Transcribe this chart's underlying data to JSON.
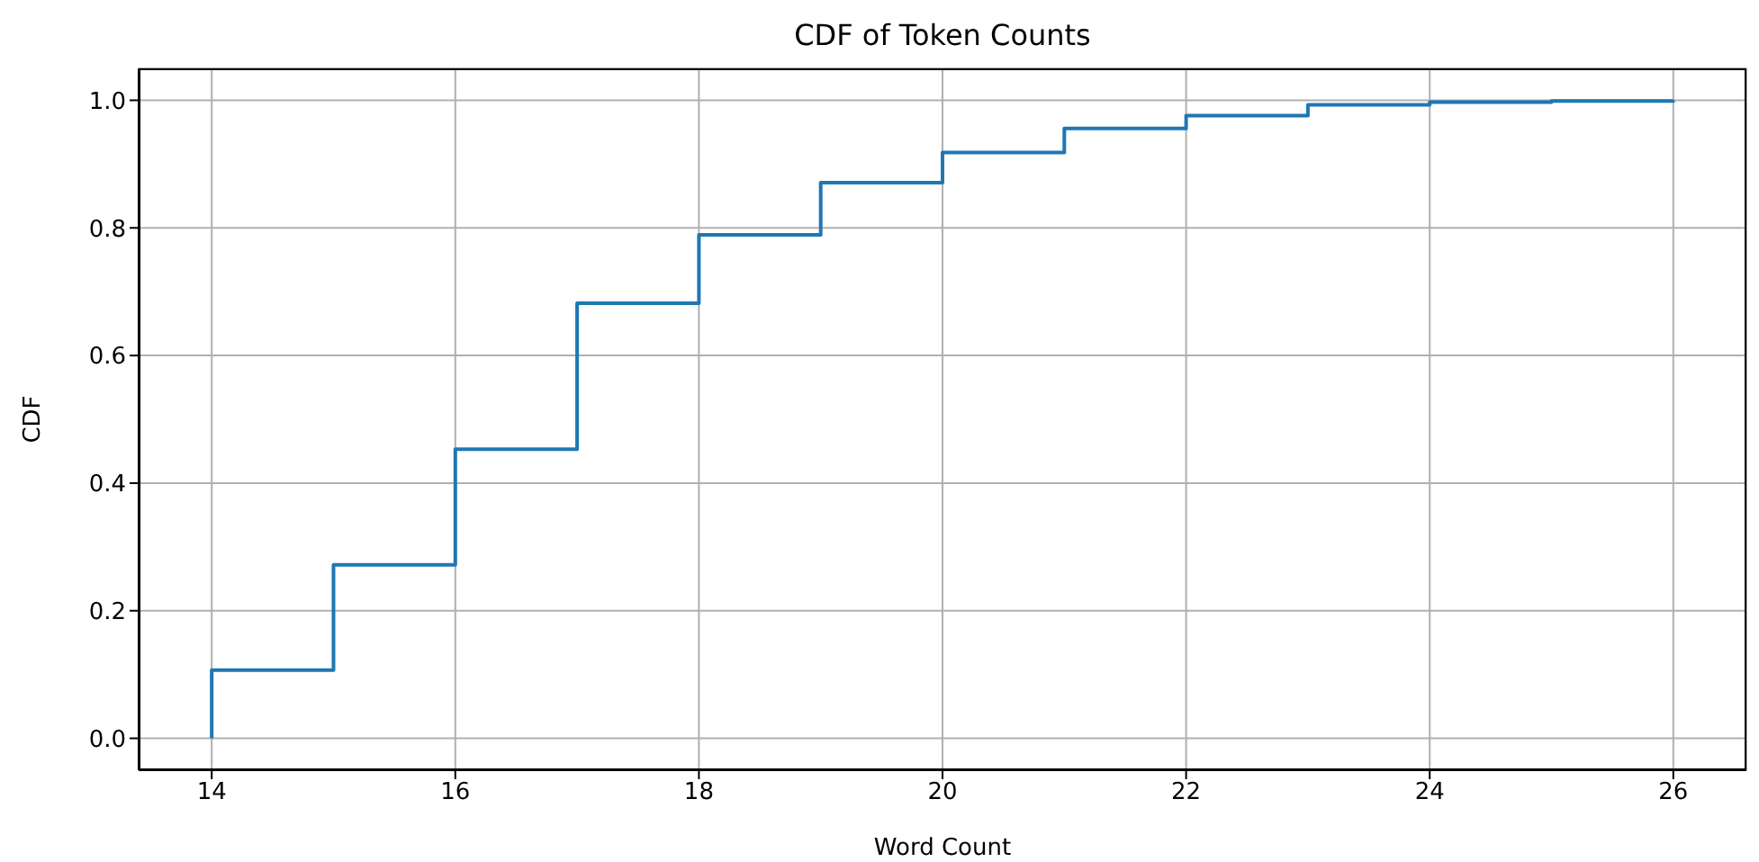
{
  "chart_data": {
    "type": "step",
    "title": "CDF of Token Counts",
    "xlabel": "Word Count",
    "ylabel": "CDF",
    "x": [
      14,
      14,
      15,
      16,
      17,
      18,
      19,
      20,
      21,
      22,
      23,
      24,
      25,
      26
    ],
    "series": [
      {
        "color": "#1f77b4",
        "values": [
          0,
          0.107,
          0.272,
          0.453,
          0.682,
          0.789,
          0.871,
          0.918,
          0.956,
          0.976,
          0.993,
          0.997,
          0.999,
          1.0
        ]
      }
    ],
    "xlim": [
      13.4,
      26.6
    ],
    "ylim": [
      -0.05,
      1.05
    ],
    "xticks": [
      14,
      16,
      18,
      20,
      22,
      24,
      26
    ],
    "yticks": [
      {
        "value": 0,
        "label": "0.0"
      },
      {
        "value": 0.2,
        "label": "0.2"
      },
      {
        "value": 0.4,
        "label": "0.4"
      },
      {
        "value": 0.6,
        "label": "0.6"
      },
      {
        "value": 0.8,
        "label": "0.8"
      },
      {
        "value": 1.0,
        "label": "1.0"
      }
    ],
    "grid": true,
    "marker": "none",
    "line_style": "solid"
  }
}
